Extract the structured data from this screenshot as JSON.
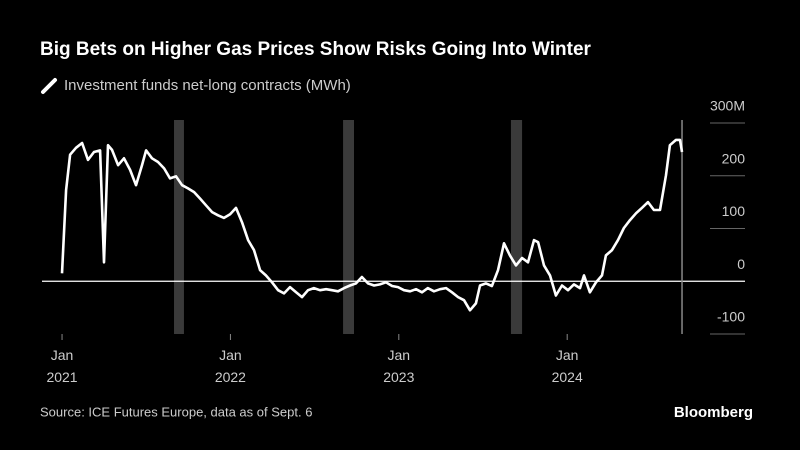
{
  "chart_data": {
    "type": "line",
    "title": "Big Bets on Higher Gas Prices Show Risks Going Into Winter",
    "source": "Source: ICE Futures Europe, data as of Sept. 6",
    "brand": "Bloomberg",
    "x": [
      2021.0,
      2021.024,
      2021.048,
      2021.083,
      2021.119,
      2021.154,
      2021.19,
      2021.226,
      2021.249,
      2021.273,
      2021.297,
      2021.333,
      2021.368,
      2021.404,
      2021.439,
      2021.475,
      2021.499,
      2021.534,
      2021.57,
      2021.606,
      2021.641,
      2021.677,
      2021.713,
      2021.748,
      2021.784,
      2021.819,
      2021.855,
      2021.891,
      2021.926,
      2021.962,
      2021.998,
      2022.033,
      2022.069,
      2022.105,
      2022.14,
      2022.176,
      2022.211,
      2022.247,
      2022.283,
      2022.318,
      2022.354,
      2022.39,
      2022.425,
      2022.461,
      2022.496,
      2022.532,
      2022.568,
      2022.603,
      2022.639,
      2022.675,
      2022.71,
      2022.746,
      2022.781,
      2022.817,
      2022.853,
      2022.888,
      2022.924,
      2022.96,
      2022.995,
      2023.031,
      2023.067,
      2023.102,
      2023.138,
      2023.173,
      2023.209,
      2023.245,
      2023.28,
      2023.316,
      2023.352,
      2023.387,
      2023.423,
      2023.458,
      2023.482,
      2023.518,
      2023.553,
      2023.589,
      2023.625,
      2023.66,
      2023.696,
      2023.732,
      2023.767,
      2023.803,
      2023.827,
      2023.862,
      2023.898,
      2023.933,
      2023.969,
      2024.005,
      2024.04,
      2024.076,
      2024.1,
      2024.135,
      2024.171,
      2024.207,
      2024.23,
      2024.266,
      2024.302,
      2024.337,
      2024.373,
      2024.409,
      2024.444,
      2024.48,
      2024.515,
      2024.551,
      2024.587,
      2024.61,
      2024.646,
      2024.67,
      2024.682
    ],
    "series": [
      {
        "name": "Investment funds net-long contracts (MWh)",
        "color": "#ffffff",
        "values": [
          15,
          173,
          240,
          253,
          262,
          230,
          245,
          248,
          36,
          258,
          249,
          220,
          233,
          211,
          182,
          220,
          248,
          233,
          226,
          214,
          195,
          199,
          182,
          176,
          169,
          157,
          144,
          131,
          125,
          120,
          127,
          139,
          112,
          78,
          59,
          21,
          11,
          -2,
          -17,
          -23,
          -11,
          -21,
          -30,
          -17,
          -13,
          -17,
          -15,
          -17,
          -19,
          -13,
          -8,
          -4,
          8,
          -4,
          -8,
          -6,
          -2,
          -9,
          -11,
          -17,
          -19,
          -15,
          -21,
          -13,
          -19,
          -15,
          -13,
          -21,
          -30,
          -36,
          -55,
          -42,
          -8,
          -4,
          -9,
          21,
          72,
          49,
          30,
          44,
          36,
          78,
          74,
          30,
          11,
          -27,
          -8,
          -17,
          -6,
          -13,
          11,
          -21,
          -2,
          11,
          49,
          59,
          78,
          101,
          116,
          129,
          139,
          150,
          135,
          135,
          201,
          258,
          268,
          268,
          245
        ]
      }
    ],
    "shaded": [
      [
        2021.665,
        2021.724
      ],
      [
        2022.669,
        2022.734
      ],
      [
        2023.666,
        2023.732
      ]
    ],
    "xlim": [
      2020.881,
      2025.056
    ],
    "xticks": [
      {
        "value": 2021,
        "label": "Jan\n2021"
      },
      {
        "value": 2022,
        "label": "Jan\n2022"
      },
      {
        "value": 2023,
        "label": "Jan\n2023"
      },
      {
        "value": 2024,
        "label": "Jan\n2024"
      }
    ],
    "ylim": [
      -100,
      300
    ],
    "yticks": [
      {
        "value": 300,
        "label": "300M"
      },
      200,
      100,
      0,
      -100
    ]
  }
}
